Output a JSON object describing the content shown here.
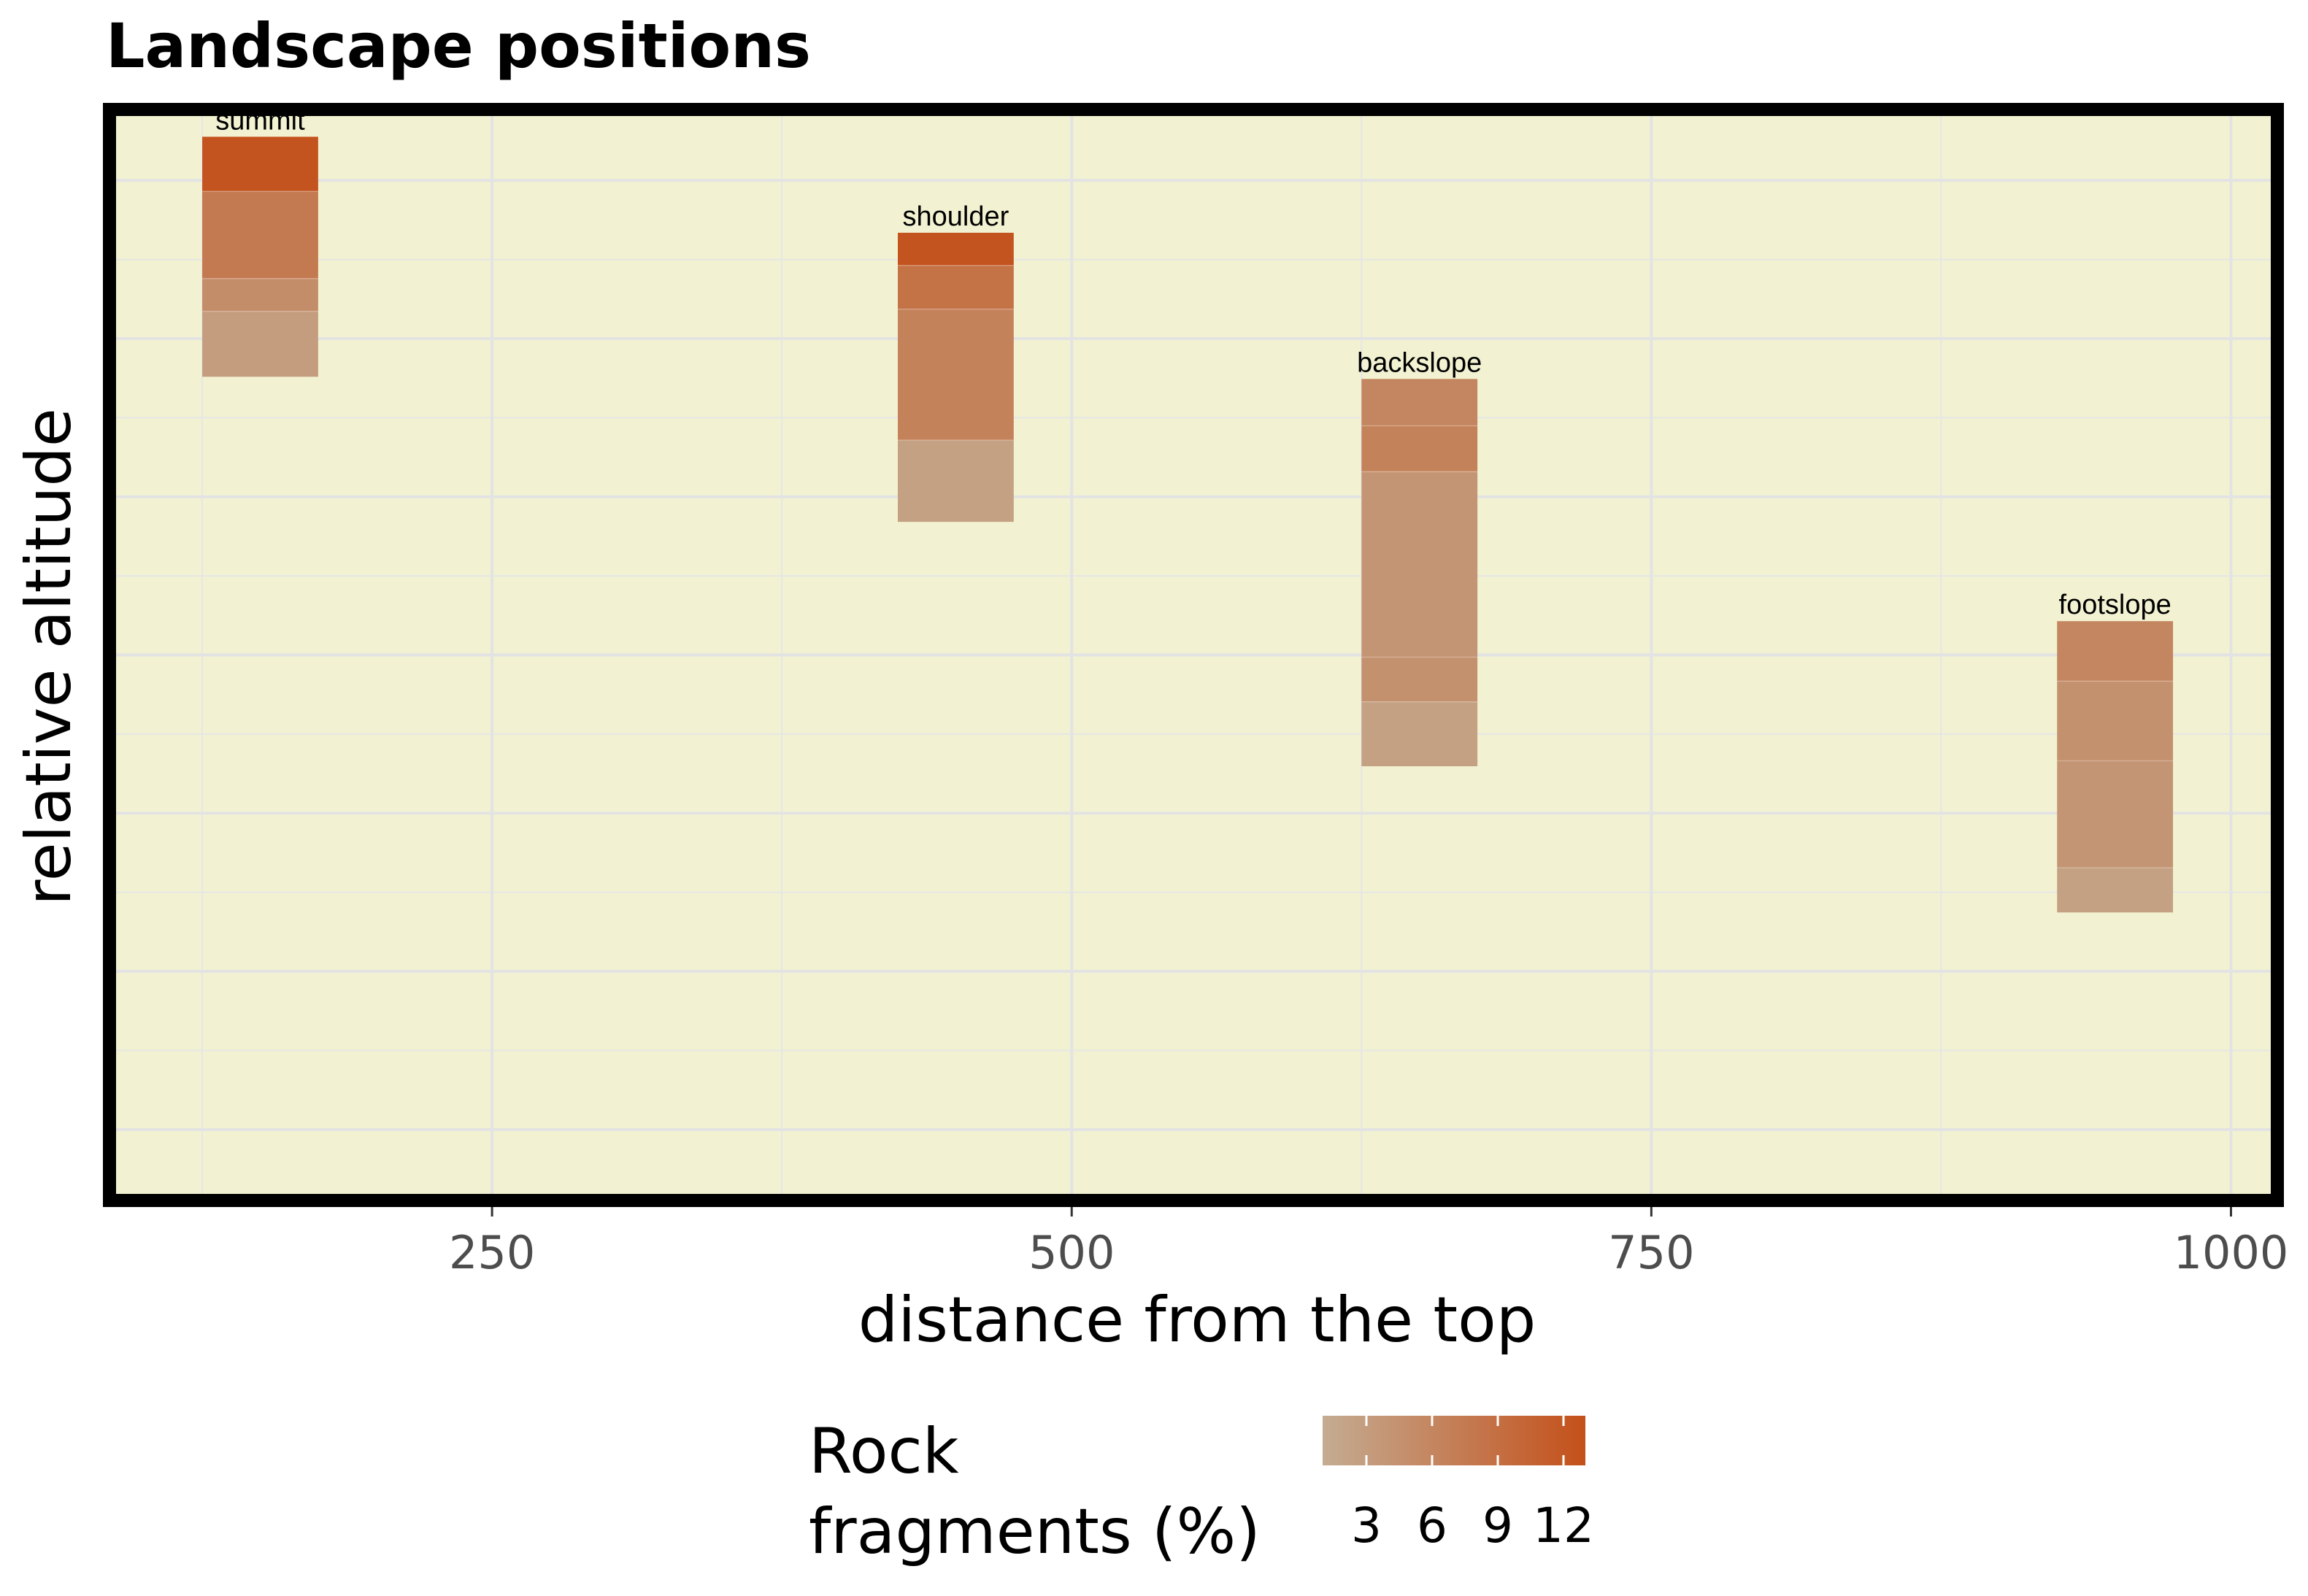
{
  "chart_data": {
    "type": "heatmap",
    "title": "Landscape positions",
    "xlabel": "distance from the top",
    "ylabel": "relative altitude",
    "xlim": [
      85,
      1020
    ],
    "ylim": [
      0,
      1
    ],
    "x_ticks": [
      250,
      500,
      750,
      1000
    ],
    "x_tick_labels": [
      "250",
      "500",
      "750",
      "1000"
    ],
    "x_minor_ticks": [
      125,
      375,
      625,
      875
    ],
    "y_grid": [
      0.935,
      0.79,
      0.645,
      0.5,
      0.355,
      0.21,
      0.065
    ],
    "y_minor_grid": [
      0.8625,
      0.7175,
      0.5725,
      0.4275,
      0.2825,
      0.1375
    ],
    "grid": true,
    "background": "#f2f2d2",
    "border": "#000000",
    "legend": {
      "title_lines": [
        "Rock",
        "fragments (%)"
      ],
      "position": "bottom",
      "min": 1,
      "max": 13,
      "ticks": [
        3,
        6,
        9,
        12
      ],
      "tick_labels": [
        "3",
        "6",
        "9",
        "12"
      ],
      "low_color": "#c4ac92",
      "high_color": "#c4501a"
    },
    "series": [
      {
        "label": "summit",
        "x": 150,
        "width": 50,
        "horizons": [
          {
            "top": 0.975,
            "bottom": 0.925,
            "rock_fragments": 12.5
          },
          {
            "top": 0.925,
            "bottom": 0.845,
            "rock_fragments": 7.5
          },
          {
            "top": 0.845,
            "bottom": 0.815,
            "rock_fragments": 5
          },
          {
            "top": 0.815,
            "bottom": 0.755,
            "rock_fragments": 3
          }
        ]
      },
      {
        "label": "shoulder",
        "x": 450,
        "width": 50,
        "horizons": [
          {
            "top": 0.887,
            "bottom": 0.857,
            "rock_fragments": 12.5
          },
          {
            "top": 0.857,
            "bottom": 0.817,
            "rock_fragments": 8.5
          },
          {
            "top": 0.817,
            "bottom": 0.697,
            "rock_fragments": 6.5
          },
          {
            "top": 0.697,
            "bottom": 0.622,
            "rock_fragments": 2.5
          }
        ]
      },
      {
        "label": "backslope",
        "x": 650,
        "width": 50,
        "horizons": [
          {
            "top": 0.753,
            "bottom": 0.71,
            "rock_fragments": 6
          },
          {
            "top": 0.71,
            "bottom": 0.668,
            "rock_fragments": 6.5
          },
          {
            "top": 0.668,
            "bottom": 0.498,
            "rock_fragments": 4
          },
          {
            "top": 0.498,
            "bottom": 0.457,
            "rock_fragments": 4.5
          },
          {
            "top": 0.457,
            "bottom": 0.398,
            "rock_fragments": 2.5
          }
        ]
      },
      {
        "label": "footslope",
        "x": 950,
        "width": 50,
        "horizons": [
          {
            "top": 0.531,
            "bottom": 0.476,
            "rock_fragments": 6
          },
          {
            "top": 0.476,
            "bottom": 0.403,
            "rock_fragments": 4.5
          },
          {
            "top": 0.403,
            "bottom": 0.305,
            "rock_fragments": 4
          },
          {
            "top": 0.305,
            "bottom": 0.264,
            "rock_fragments": 2.5
          }
        ]
      }
    ]
  }
}
